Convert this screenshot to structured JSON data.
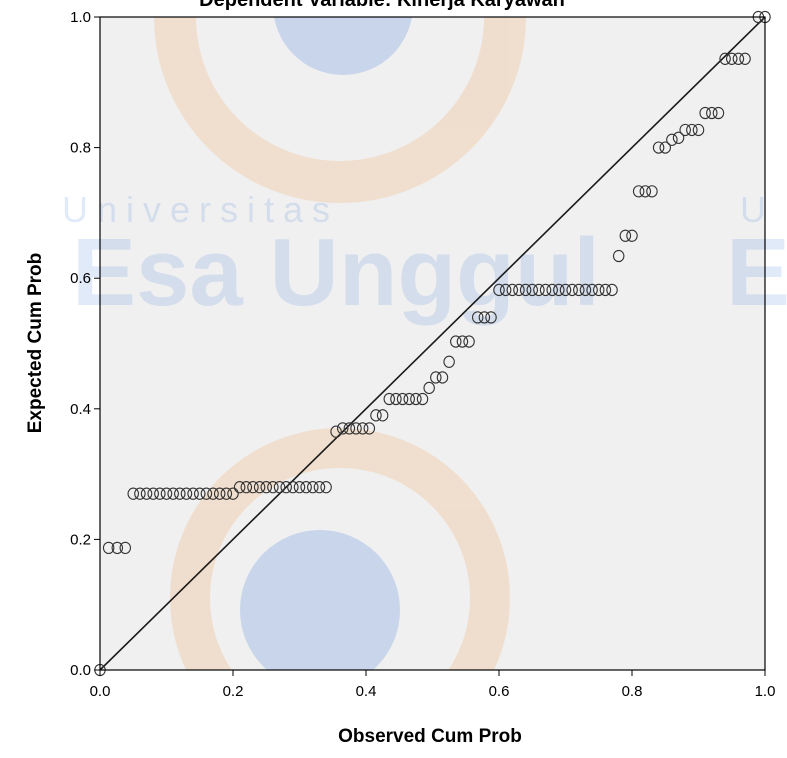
{
  "watermark": {
    "line1": "Universitas",
    "line2": "Esa Unggul",
    "edge_letter": "E",
    "edge_letter_small": "U",
    "colors": {
      "blue": "#2f6fd6",
      "orange": "#ef9a4d"
    }
  },
  "chart_data": {
    "type": "scatter",
    "title": "Dependent Variable: Kinerja Karyawan",
    "xlabel": "Observed Cum Prob",
    "ylabel": "Expected Cum Prob",
    "xlim": [
      0,
      1
    ],
    "ylim": [
      0,
      1
    ],
    "x_ticks": [
      0.0,
      0.2,
      0.4,
      0.6,
      0.8,
      1.0
    ],
    "y_ticks": [
      0.0,
      0.2,
      0.4,
      0.6,
      0.8,
      1.0
    ],
    "x_tick_labels": [
      "0.0",
      "0.2",
      "0.4",
      "0.6",
      "0.8",
      "1.0"
    ],
    "y_tick_labels": [
      "0.0",
      "0.2",
      "0.4",
      "0.6",
      "0.8",
      "1.0"
    ],
    "reference_line": {
      "from": [
        0,
        0
      ],
      "to": [
        1,
        1
      ]
    },
    "grid": false,
    "colors": {
      "plot_bg": "#f0f0f0",
      "marker_stroke": "#333333",
      "line": "#1a1a1a"
    },
    "points": [
      {
        "x": 0.0,
        "y": 0.0
      },
      {
        "x": 0.013,
        "y": 0.187
      },
      {
        "x": 0.026,
        "y": 0.187
      },
      {
        "x": 0.038,
        "y": 0.187
      },
      {
        "x": 0.05,
        "y": 0.27
      },
      {
        "x": 0.06,
        "y": 0.27
      },
      {
        "x": 0.07,
        "y": 0.27
      },
      {
        "x": 0.08,
        "y": 0.27
      },
      {
        "x": 0.09,
        "y": 0.27
      },
      {
        "x": 0.1,
        "y": 0.27
      },
      {
        "x": 0.11,
        "y": 0.27
      },
      {
        "x": 0.12,
        "y": 0.27
      },
      {
        "x": 0.13,
        "y": 0.27
      },
      {
        "x": 0.14,
        "y": 0.27
      },
      {
        "x": 0.15,
        "y": 0.27
      },
      {
        "x": 0.16,
        "y": 0.27
      },
      {
        "x": 0.17,
        "y": 0.27
      },
      {
        "x": 0.18,
        "y": 0.27
      },
      {
        "x": 0.19,
        "y": 0.27
      },
      {
        "x": 0.2,
        "y": 0.27
      },
      {
        "x": 0.21,
        "y": 0.28
      },
      {
        "x": 0.22,
        "y": 0.28
      },
      {
        "x": 0.23,
        "y": 0.28
      },
      {
        "x": 0.24,
        "y": 0.28
      },
      {
        "x": 0.25,
        "y": 0.28
      },
      {
        "x": 0.26,
        "y": 0.28
      },
      {
        "x": 0.27,
        "y": 0.28
      },
      {
        "x": 0.28,
        "y": 0.28
      },
      {
        "x": 0.29,
        "y": 0.28
      },
      {
        "x": 0.3,
        "y": 0.28
      },
      {
        "x": 0.31,
        "y": 0.28
      },
      {
        "x": 0.32,
        "y": 0.28
      },
      {
        "x": 0.33,
        "y": 0.28
      },
      {
        "x": 0.34,
        "y": 0.28
      },
      {
        "x": 0.355,
        "y": 0.365
      },
      {
        "x": 0.365,
        "y": 0.37
      },
      {
        "x": 0.375,
        "y": 0.37
      },
      {
        "x": 0.385,
        "y": 0.37
      },
      {
        "x": 0.395,
        "y": 0.37
      },
      {
        "x": 0.405,
        "y": 0.37
      },
      {
        "x": 0.415,
        "y": 0.39
      },
      {
        "x": 0.425,
        "y": 0.39
      },
      {
        "x": 0.435,
        "y": 0.415
      },
      {
        "x": 0.445,
        "y": 0.415
      },
      {
        "x": 0.455,
        "y": 0.415
      },
      {
        "x": 0.465,
        "y": 0.415
      },
      {
        "x": 0.475,
        "y": 0.415
      },
      {
        "x": 0.485,
        "y": 0.415
      },
      {
        "x": 0.495,
        "y": 0.432
      },
      {
        "x": 0.505,
        "y": 0.448
      },
      {
        "x": 0.515,
        "y": 0.448
      },
      {
        "x": 0.525,
        "y": 0.472
      },
      {
        "x": 0.535,
        "y": 0.503
      },
      {
        "x": 0.545,
        "y": 0.503
      },
      {
        "x": 0.555,
        "y": 0.503
      },
      {
        "x": 0.568,
        "y": 0.54
      },
      {
        "x": 0.578,
        "y": 0.54
      },
      {
        "x": 0.588,
        "y": 0.54
      },
      {
        "x": 0.6,
        "y": 0.582
      },
      {
        "x": 0.61,
        "y": 0.582
      },
      {
        "x": 0.62,
        "y": 0.582
      },
      {
        "x": 0.63,
        "y": 0.582
      },
      {
        "x": 0.64,
        "y": 0.582
      },
      {
        "x": 0.65,
        "y": 0.582
      },
      {
        "x": 0.66,
        "y": 0.582
      },
      {
        "x": 0.67,
        "y": 0.582
      },
      {
        "x": 0.68,
        "y": 0.582
      },
      {
        "x": 0.69,
        "y": 0.582
      },
      {
        "x": 0.7,
        "y": 0.582
      },
      {
        "x": 0.71,
        "y": 0.582
      },
      {
        "x": 0.72,
        "y": 0.582
      },
      {
        "x": 0.73,
        "y": 0.582
      },
      {
        "x": 0.74,
        "y": 0.582
      },
      {
        "x": 0.75,
        "y": 0.582
      },
      {
        "x": 0.76,
        "y": 0.582
      },
      {
        "x": 0.77,
        "y": 0.582
      },
      {
        "x": 0.78,
        "y": 0.634
      },
      {
        "x": 0.79,
        "y": 0.665
      },
      {
        "x": 0.8,
        "y": 0.665
      },
      {
        "x": 0.81,
        "y": 0.733
      },
      {
        "x": 0.82,
        "y": 0.733
      },
      {
        "x": 0.83,
        "y": 0.733
      },
      {
        "x": 0.84,
        "y": 0.8
      },
      {
        "x": 0.85,
        "y": 0.8
      },
      {
        "x": 0.86,
        "y": 0.812
      },
      {
        "x": 0.87,
        "y": 0.815
      },
      {
        "x": 0.88,
        "y": 0.827
      },
      {
        "x": 0.89,
        "y": 0.827
      },
      {
        "x": 0.9,
        "y": 0.827
      },
      {
        "x": 0.91,
        "y": 0.853
      },
      {
        "x": 0.92,
        "y": 0.853
      },
      {
        "x": 0.93,
        "y": 0.853
      },
      {
        "x": 0.94,
        "y": 0.936
      },
      {
        "x": 0.95,
        "y": 0.936
      },
      {
        "x": 0.96,
        "y": 0.936
      },
      {
        "x": 0.97,
        "y": 0.936
      },
      {
        "x": 0.99,
        "y": 1.0
      },
      {
        "x": 1.0,
        "y": 1.0
      }
    ]
  }
}
